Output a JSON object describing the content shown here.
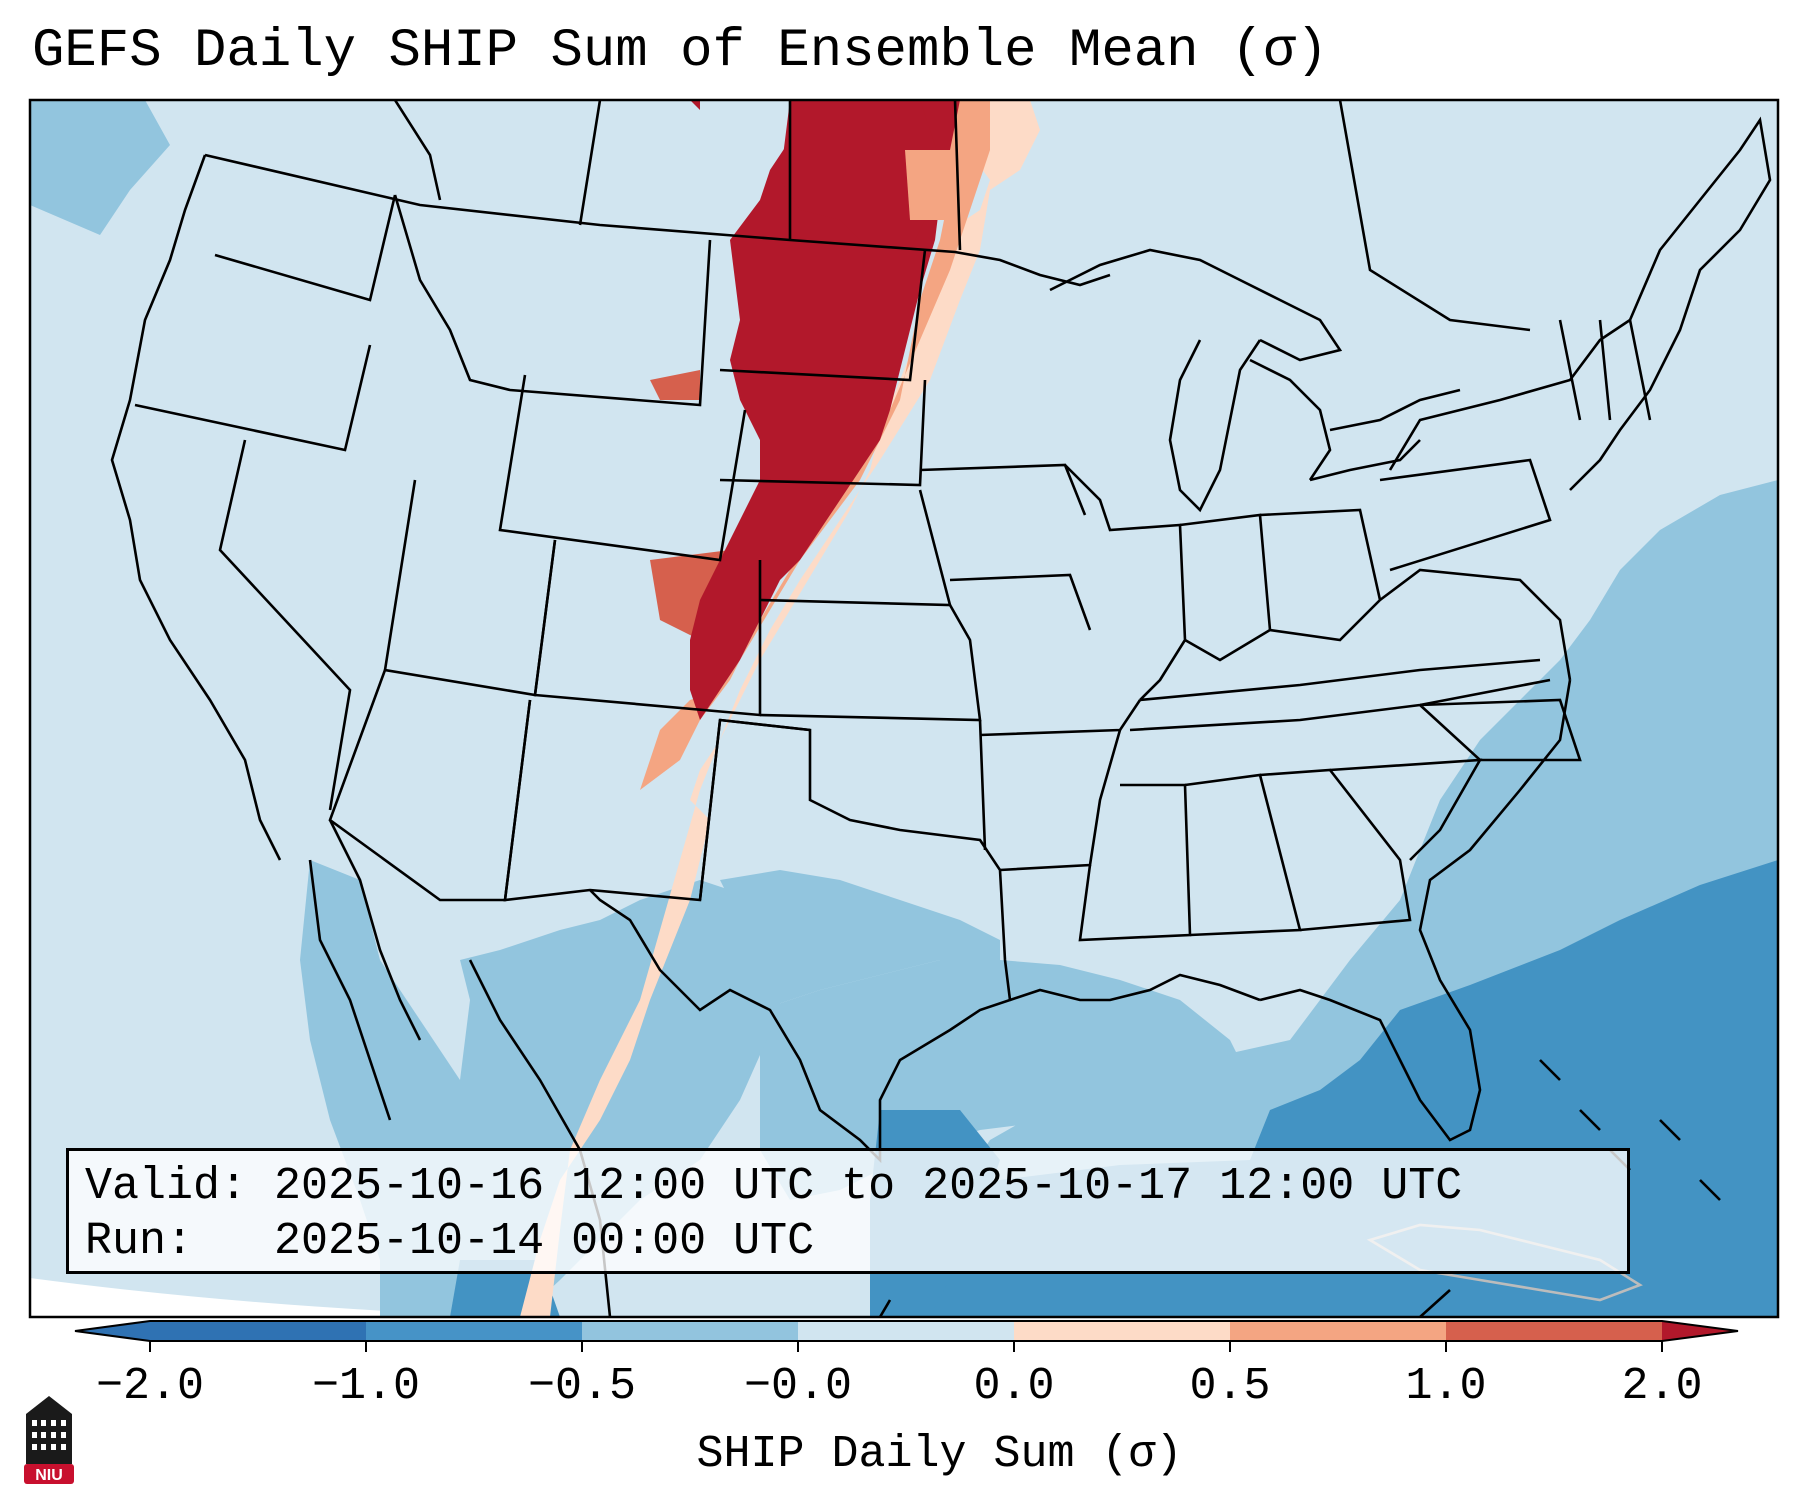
{
  "title": "GEFS Daily SHIP Sum of Ensemble Mean (σ)",
  "info": {
    "valid_line": "Valid: 2025-10-16 12:00 UTC to 2025-10-17 12:00 UTC",
    "run_line": "Run:   2025-10-14 00:00 UTC"
  },
  "colorbar": {
    "label": "SHIP Daily Sum (σ)",
    "ticks": [
      "−2.0",
      "−1.0",
      "−0.5",
      "−0.0",
      "0.0",
      "0.5",
      "1.0",
      "2.0"
    ],
    "colors": [
      "#2f72b3",
      "#4693c7",
      "#92c4de",
      "#d1e5f0",
      "#fddbc7",
      "#f4a582",
      "#d6604d",
      "#b2182b"
    ]
  },
  "logo": {
    "text": "NIU"
  },
  "map_colors": {
    "deep_blue": "#4393c3",
    "mid_blue": "#92c5de",
    "light_blue": "#d1e5f0",
    "light_red": "#fddbc7",
    "mid_red": "#f4a582",
    "red": "#d6604d",
    "dark_red": "#b2182b"
  }
}
